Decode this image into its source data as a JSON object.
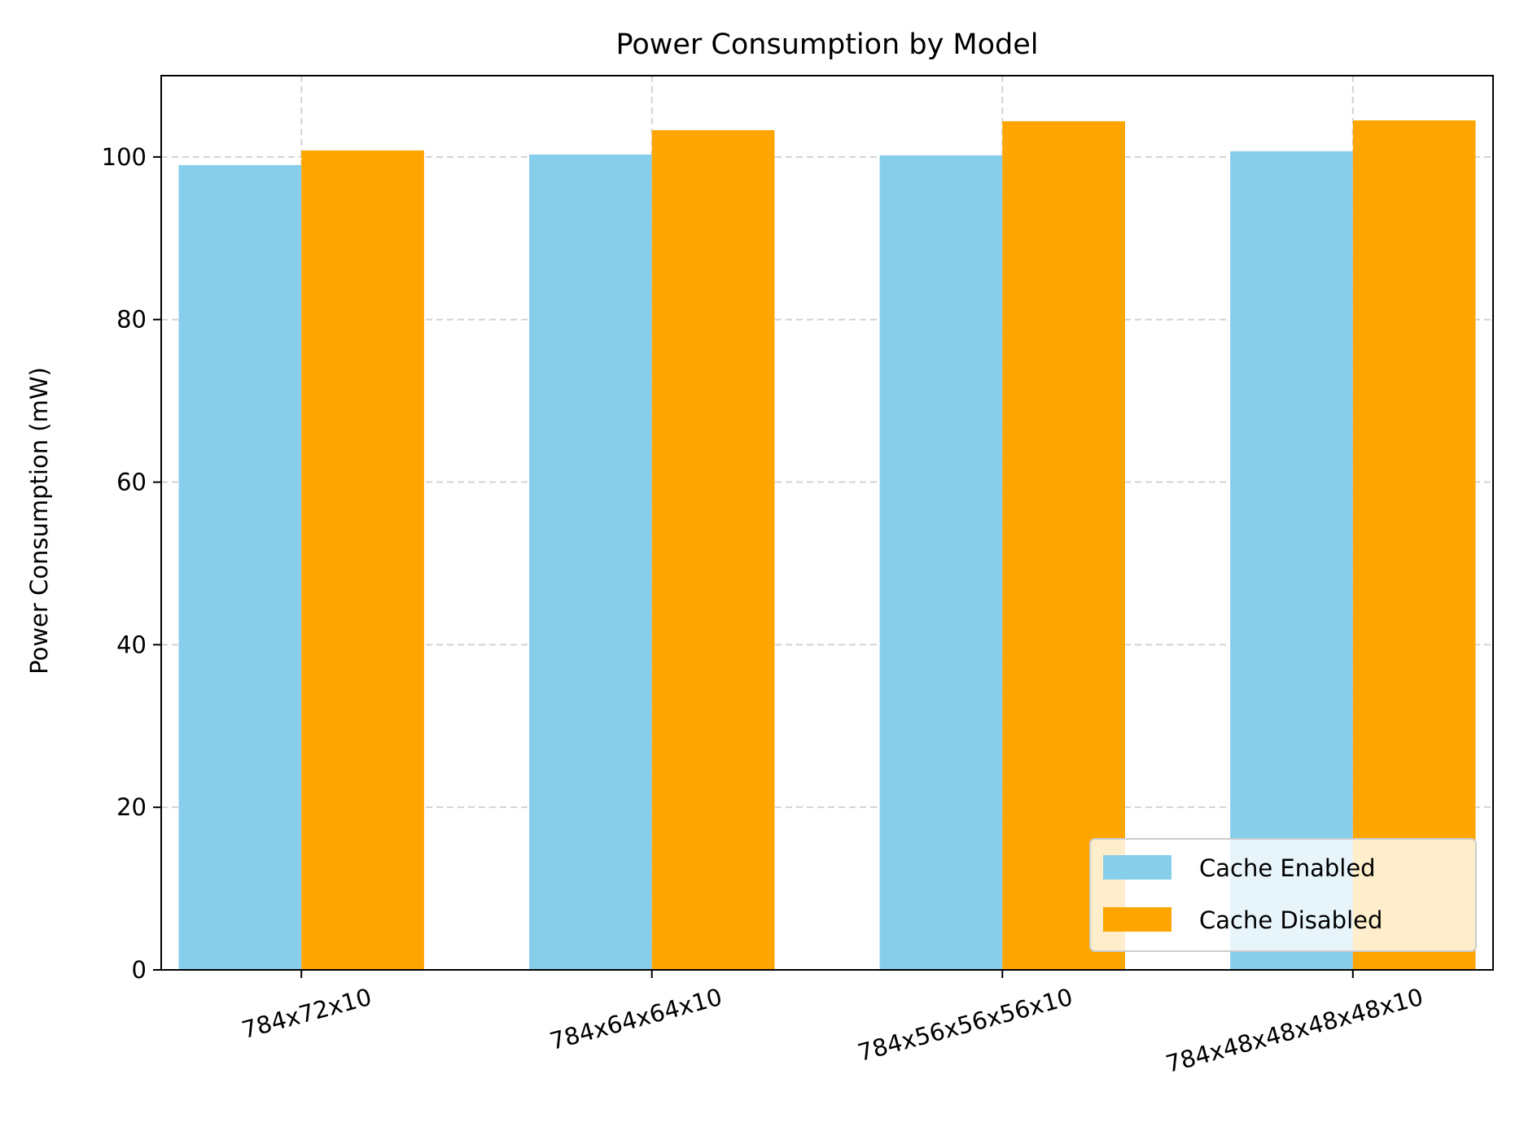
{
  "chart_data": {
    "type": "bar",
    "title": "Power Consumption by Model",
    "xlabel": "",
    "ylabel": "Power Consumption (mW)",
    "categories": [
      "784x72x10",
      "784x64x64x10",
      "784x56x56x56x10",
      "784x48x48x48x48x10"
    ],
    "series": [
      {
        "name": "Cache Enabled",
        "values": [
          99.0,
          100.3,
          100.2,
          100.7
        ],
        "color": "#87CEEB"
      },
      {
        "name": "Cache Disabled",
        "values": [
          100.8,
          103.3,
          104.4,
          104.5
        ],
        "color": "#FFA500"
      }
    ],
    "ylim": [
      0,
      110
    ],
    "yticks": [
      0,
      20,
      40,
      60,
      80,
      100
    ],
    "grid": true,
    "legend_position": "bottom-right"
  }
}
